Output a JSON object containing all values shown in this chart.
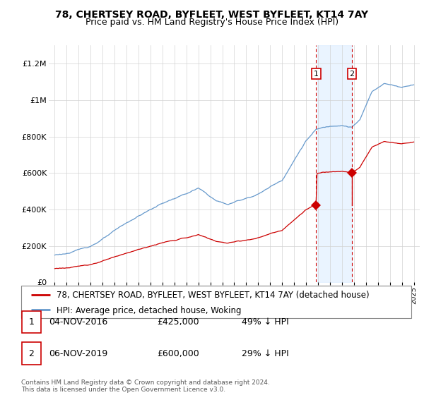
{
  "title": "78, CHERTSEY ROAD, BYFLEET, WEST BYFLEET, KT14 7AY",
  "subtitle": "Price paid vs. HM Land Registry's House Price Index (HPI)",
  "ylim": [
    0,
    1300000
  ],
  "yticks": [
    0,
    200000,
    400000,
    600000,
    800000,
    1000000,
    1200000
  ],
  "ytick_labels": [
    "£0",
    "£200K",
    "£400K",
    "£600K",
    "£800K",
    "£1M",
    "£1.2M"
  ],
  "sale1_date": 2016.84,
  "sale1_price": 425000,
  "sale1_label": "04-NOV-2016",
  "sale1_pct": "49% ↓ HPI",
  "sale2_date": 2019.84,
  "sale2_price": 600000,
  "sale2_label": "06-NOV-2019",
  "sale2_pct": "29% ↓ HPI",
  "hpi_color": "#6699cc",
  "price_color": "#cc0000",
  "shade_color": "#ddeeff",
  "legend_label_price": "78, CHERTSEY ROAD, BYFLEET, WEST BYFLEET, KT14 7AY (detached house)",
  "legend_label_hpi": "HPI: Average price, detached house, Woking",
  "footer": "Contains HM Land Registry data © Crown copyright and database right 2024.\nThis data is licensed under the Open Government Licence v3.0.",
  "title_fontsize": 10,
  "subtitle_fontsize": 9,
  "tick_fontsize": 8,
  "legend_fontsize": 8.5
}
